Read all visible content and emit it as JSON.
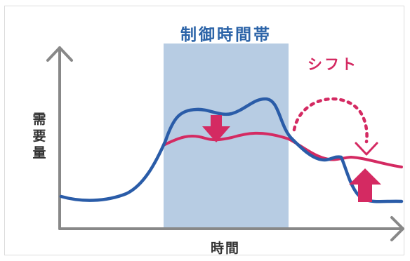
{
  "diagram": {
    "control_period_label": "制御時間帯",
    "shift_label": "シフト",
    "y_axis_label": "需要量",
    "x_axis_label": "時間",
    "colors": {
      "band": "#b7cce3",
      "band_title": "#2c64a8",
      "original_demand": "#2a5ca8",
      "controlled_demand": "#d42a62",
      "arrow": "#d42a62",
      "axis": "#888888"
    }
  }
}
